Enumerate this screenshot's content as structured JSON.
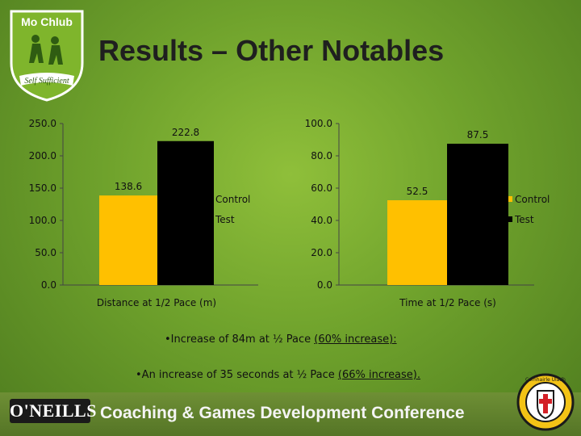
{
  "logo": {
    "top_text": "Mo Chlub",
    "bottom_text": "Self Sufficient"
  },
  "title": "Results – Other Notables",
  "chart_data": [
    {
      "type": "bar",
      "categories": [
        "Distance at 1/2 Pace (m)"
      ],
      "xlabel": "Distance at 1/2 Pace (m)",
      "ylim": [
        0,
        250
      ],
      "yticks": [
        "0.0",
        "50.0",
        "100.0",
        "150.0",
        "200.0",
        "250.0"
      ],
      "series": [
        {
          "name": "Control",
          "values": [
            138.6
          ],
          "label": "138.6",
          "color": "#FFC000"
        },
        {
          "name": "Test",
          "values": [
            222.8
          ],
          "label": "222.8",
          "color": "#000000"
        }
      ],
      "legend": "right"
    },
    {
      "type": "bar",
      "categories": [
        "Time at 1/2 Pace (s)"
      ],
      "xlabel": "Time at 1/2 Pace (s)",
      "ylim": [
        0,
        100
      ],
      "yticks": [
        "0.0",
        "20.0",
        "40.0",
        "60.0",
        "80.0",
        "100.0"
      ],
      "series": [
        {
          "name": "Control",
          "values": [
            52.5
          ],
          "label": "52.5",
          "color": "#FFC000"
        },
        {
          "name": "Test",
          "values": [
            87.5
          ],
          "label": "87.5",
          "color": "#000000"
        }
      ],
      "legend": "right"
    }
  ],
  "bullets": [
    {
      "marker": "•",
      "text": "Increase of 84m at ½ Pace ",
      "underlined": "(60% increase):"
    },
    {
      "marker": "•",
      "text": "An increase of 35 seconds at ½ Pace ",
      "underlined": "(66% increase)."
    }
  ],
  "footer": {
    "brand": "O'NEILLS",
    "conference": "Coaching & Games Development Conference"
  },
  "crest": {
    "text": "Comhairle Uladh"
  }
}
